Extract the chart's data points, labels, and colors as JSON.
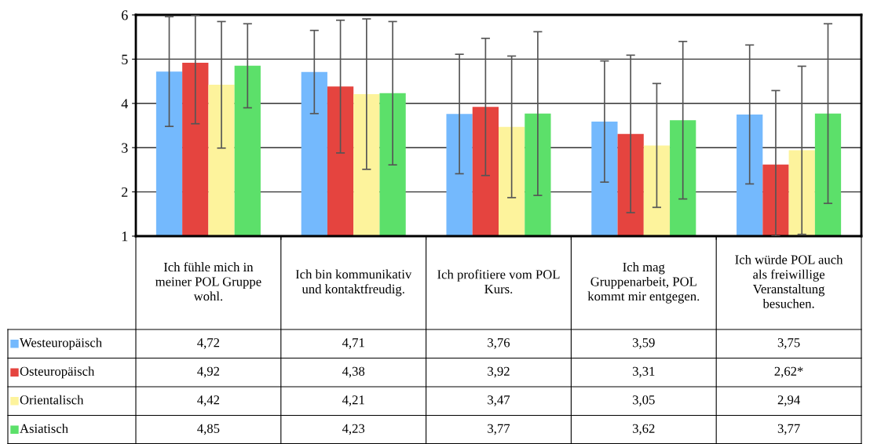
{
  "chart_data": {
    "type": "bar",
    "categories": [
      "Ich fühle mich in meiner POL Gruppe wohl.",
      "Ich bin kommunikativ und kontaktfreudig.",
      "Ich profitiere vom POL Kurs.",
      "Ich mag Gruppenarbeit, POL kommt mir entgegen.",
      "Ich würde POL auch als freiwillige Veranstaltung besuchen."
    ],
    "series": [
      {
        "name": "Westeuropäisch",
        "color": "#74b9fd",
        "values": [
          4.72,
          4.71,
          3.76,
          3.59,
          3.75
        ],
        "value_labels": [
          "4,72",
          "4,71",
          "3,76",
          "3,59",
          "3,75"
        ],
        "errors": [
          1.24,
          0.94,
          1.35,
          1.37,
          1.57
        ]
      },
      {
        "name": "Osteuropäisch",
        "color": "#e5443f",
        "values": [
          4.92,
          4.38,
          3.92,
          3.31,
          2.62
        ],
        "value_labels": [
          "4,92",
          "4,38",
          "3,92",
          "3,31",
          "2,62*"
        ],
        "errors": [
          [
            3.54,
            6
          ],
          1.5,
          1.55,
          1.78,
          [
            1,
            4.29
          ]
        ]
      },
      {
        "name": "Orientalisch",
        "color": "#fdf39c",
        "values": [
          4.42,
          4.21,
          3.47,
          3.05,
          2.94
        ],
        "value_labels": [
          "4,42",
          "4,21",
          "3,47",
          "3,05",
          "2,94"
        ],
        "errors": [
          1.43,
          1.7,
          1.6,
          1.4,
          1.9
        ]
      },
      {
        "name": "Asiatisch",
        "color": "#5ce06a",
        "values": [
          4.85,
          4.23,
          3.77,
          3.62,
          3.77
        ],
        "value_labels": [
          "4,85",
          "4,23",
          "3,77",
          "3,62",
          "3,77"
        ],
        "errors": [
          0.95,
          1.62,
          1.85,
          1.78,
          2.03
        ]
      }
    ],
    "legend": "bottom left",
    "ylim": [
      1,
      6
    ],
    "yticks": [
      1,
      2,
      3,
      4,
      5,
      6
    ],
    "grid": "y"
  }
}
